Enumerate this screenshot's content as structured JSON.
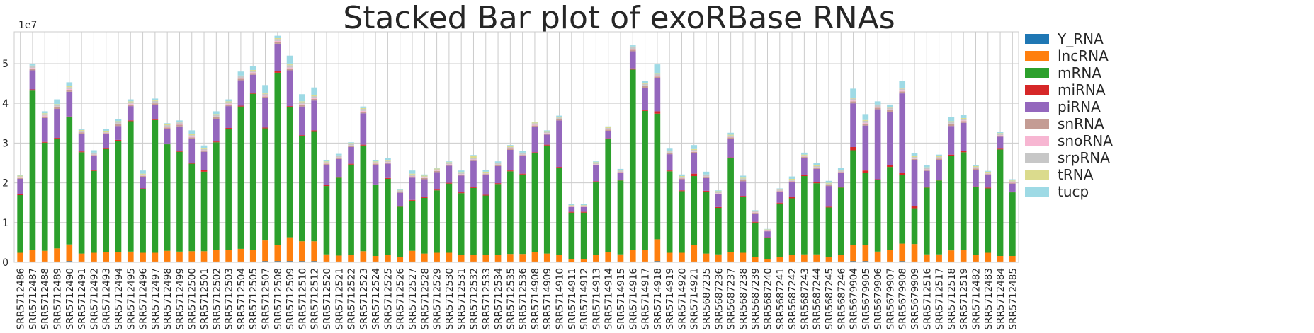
{
  "chart_data": {
    "type": "bar",
    "stacked": true,
    "title": "Stacked Bar plot of exoRBase RNAs",
    "xlabel": "",
    "ylabel": "",
    "y_scale_label": "1e7",
    "y_scale": 10000000,
    "ylim": [
      0,
      5.8
    ],
    "yticks": [
      0,
      1,
      2,
      3,
      4,
      5
    ],
    "grid": true,
    "legend_position": "right",
    "categories": [
      "SRR5712486",
      "SRR5712487",
      "SRR5712488",
      "SRR5712489",
      "SRR5712490",
      "SRR5712491",
      "SRR5712492",
      "SRR5712493",
      "SRR5712494",
      "SRR5712495",
      "SRR5712496",
      "SRR5712497",
      "SRR5712498",
      "SRR5712499",
      "SRR5712500",
      "SRR5712501",
      "SRR5712502",
      "SRR5712503",
      "SRR5712504",
      "SRR5712505",
      "SRR5712507",
      "SRR5712508",
      "SRR5712509",
      "SRR5712510",
      "SRR5712512",
      "SRR5712520",
      "SRR5712521",
      "SRR5712522",
      "SRR5712523",
      "SRR5712524",
      "SRR5712525",
      "SRR5712526",
      "SRR5712527",
      "SRR5712528",
      "SRR5712529",
      "SRR5712530",
      "SRR5712531",
      "SRR5712532",
      "SRR5712533",
      "SRR5712534",
      "SRR5712535",
      "SRR5712536",
      "SRR5714908",
      "SRR5714909",
      "SRR5714910",
      "SRR5714911",
      "SRR5714912",
      "SRR5714913",
      "SRR5714914",
      "SRR5714915",
      "SRR5714916",
      "SRR5714917",
      "SRR5714918",
      "SRR5714919",
      "SRR5714920",
      "SRR5714921",
      "SRR5687235",
      "SRR5687236",
      "SRR5687237",
      "SRR5687238",
      "SRR5687239",
      "SRR5687240",
      "SRR5687241",
      "SRR5687242",
      "SRR5687243",
      "SRR5687244",
      "SRR5687245",
      "SRR5687246",
      "SRR5679904",
      "SRR5679905",
      "SRR5679906",
      "SRR5679907",
      "SRR5679908",
      "SRR5679909",
      "SRR5712516",
      "SRR5712517",
      "SRR5712518",
      "SRR5712519",
      "SRR5712482",
      "SRR5712483",
      "SRR5712484",
      "SRR5712485"
    ],
    "series": [
      {
        "name": "Y_RNA",
        "color": "#1f77b4",
        "values": [
          0.02,
          0.02,
          0.02,
          0.02,
          0.03,
          0.02,
          0.02,
          0.02,
          0.02,
          0.02,
          0.02,
          0.02,
          0.02,
          0.02,
          0.02,
          0.02,
          0.02,
          0.02,
          0.02,
          0.02,
          0.03,
          0.03,
          0.03,
          0.03,
          0.03,
          0.02,
          0.02,
          0.02,
          0.02,
          0.02,
          0.02,
          0.01,
          0.02,
          0.02,
          0.02,
          0.02,
          0.02,
          0.02,
          0.02,
          0.02,
          0.02,
          0.02,
          0.02,
          0.02,
          0.02,
          0.01,
          0.01,
          0.02,
          0.02,
          0.02,
          0.02,
          0.02,
          0.03,
          0.02,
          0.02,
          0.02,
          0.02,
          0.02,
          0.02,
          0.02,
          0.01,
          0.01,
          0.02,
          0.02,
          0.02,
          0.02,
          0.02,
          0.02,
          0.03,
          0.03,
          0.02,
          0.02,
          0.03,
          0.02,
          0.02,
          0.02,
          0.02,
          0.02,
          0.02,
          0.02,
          0.02,
          0.02
        ]
      },
      {
        "name": "lncRNA",
        "color": "#ff7f0e",
        "values": [
          0.22,
          0.29,
          0.27,
          0.33,
          0.42,
          0.2,
          0.22,
          0.23,
          0.24,
          0.25,
          0.22,
          0.22,
          0.27,
          0.25,
          0.26,
          0.26,
          0.3,
          0.3,
          0.32,
          0.3,
          0.52,
          0.4,
          0.6,
          0.5,
          0.5,
          0.18,
          0.15,
          0.17,
          0.26,
          0.14,
          0.16,
          0.12,
          0.27,
          0.2,
          0.22,
          0.22,
          0.16,
          0.16,
          0.16,
          0.17,
          0.19,
          0.19,
          0.23,
          0.2,
          0.16,
          0.07,
          0.07,
          0.17,
          0.23,
          0.18,
          0.3,
          0.3,
          0.55,
          0.22,
          0.22,
          0.42,
          0.2,
          0.18,
          0.23,
          0.22,
          0.12,
          0.07,
          0.12,
          0.16,
          0.18,
          0.18,
          0.12,
          0.16,
          0.4,
          0.4,
          0.25,
          0.3,
          0.44,
          0.44,
          0.18,
          0.18,
          0.28,
          0.3,
          0.17,
          0.22,
          0.14,
          0.14
        ]
      },
      {
        "name": "mRNA",
        "color": "#2ca02c",
        "values": [
          1.45,
          4.01,
          2.72,
          2.76,
          3.2,
          2.55,
          2.06,
          2.6,
          2.8,
          3.28,
          1.6,
          3.34,
          2.68,
          2.51,
          2.2,
          2.0,
          2.7,
          3.04,
          3.58,
          3.92,
          2.82,
          4.34,
          3.28,
          2.65,
          2.77,
          1.72,
          1.96,
          2.27,
          2.66,
          1.78,
          1.92,
          1.27,
          1.26,
          1.4,
          1.57,
          1.74,
          1.56,
          1.69,
          1.5,
          1.78,
          2.08,
          2.0,
          2.5,
          2.72,
          2.2,
          1.17,
          1.17,
          1.83,
          2.85,
          1.86,
          4.53,
          3.49,
          3.16,
          2.05,
          1.55,
          1.73,
          1.56,
          1.17,
          2.37,
          1.41,
          0.87,
          0.53,
          1.34,
          1.43,
          1.97,
          1.79,
          1.24,
          1.7,
          2.39,
          1.82,
          1.8,
          2.08,
          1.73,
          0.9,
          1.68,
          1.86,
          2.37,
          2.45,
          1.7,
          1.62,
          2.68,
          1.6
        ]
      },
      {
        "name": "miRNA",
        "color": "#d62728",
        "values": [
          0.03,
          0.03,
          0.02,
          0.02,
          0.02,
          0.02,
          0.02,
          0.02,
          0.02,
          0.02,
          0.02,
          0.02,
          0.02,
          0.02,
          0.02,
          0.05,
          0.02,
          0.02,
          0.02,
          0.02,
          0.02,
          0.05,
          0.02,
          0.02,
          0.02,
          0.02,
          0.02,
          0.02,
          0.02,
          0.02,
          0.02,
          0.02,
          0.02,
          0.02,
          0.02,
          0.02,
          0.02,
          0.02,
          0.02,
          0.02,
          0.02,
          0.02,
          0.02,
          0.02,
          0.02,
          0.02,
          0.02,
          0.02,
          0.02,
          0.02,
          0.03,
          0.02,
          0.06,
          0.02,
          0.02,
          0.06,
          0.02,
          0.02,
          0.02,
          0.02,
          0.02,
          0.02,
          0.02,
          0.04,
          0.02,
          0.02,
          0.02,
          0.02,
          0.08,
          0.06,
          0.02,
          0.04,
          0.05,
          0.06,
          0.02,
          0.02,
          0.04,
          0.04,
          0.02,
          0.02,
          0.02,
          0.02
        ]
      },
      {
        "name": "piRNA",
        "color": "#9467bd",
        "values": [
          0.38,
          0.48,
          0.6,
          0.73,
          0.62,
          0.45,
          0.35,
          0.35,
          0.35,
          0.36,
          0.28,
          0.36,
          0.36,
          0.62,
          0.6,
          0.45,
          0.57,
          0.55,
          0.64,
          0.46,
          0.74,
          0.68,
          0.9,
          0.72,
          0.75,
          0.51,
          0.45,
          0.42,
          0.79,
          0.49,
          0.36,
          0.33,
          0.56,
          0.45,
          0.44,
          0.43,
          0.42,
          0.66,
          0.49,
          0.43,
          0.52,
          0.44,
          0.63,
          0.25,
          1.17,
          0.12,
          0.12,
          0.4,
          0.19,
          0.17,
          0.43,
          0.56,
          0.83,
          0.41,
          0.28,
          0.52,
          0.32,
          0.32,
          0.47,
          0.37,
          0.21,
          0.15,
          0.27,
          0.37,
          0.43,
          0.34,
          0.52,
          0.35,
          1.1,
          1.13,
          1.76,
          1.35,
          2.0,
          1.15,
          0.4,
          0.5,
          0.72,
          0.7,
          0.42,
          0.32,
          0.3,
          0.2
        ]
      },
      {
        "name": "snRNA",
        "color": "#c49c94",
        "values": [
          0.02,
          0.04,
          0.04,
          0.04,
          0.05,
          0.03,
          0.03,
          0.03,
          0.04,
          0.04,
          0.03,
          0.04,
          0.04,
          0.04,
          0.04,
          0.03,
          0.04,
          0.04,
          0.04,
          0.04,
          0.04,
          0.05,
          0.05,
          0.04,
          0.04,
          0.03,
          0.03,
          0.03,
          0.04,
          0.03,
          0.03,
          0.02,
          0.03,
          0.03,
          0.03,
          0.03,
          0.03,
          0.03,
          0.03,
          0.03,
          0.03,
          0.03,
          0.04,
          0.03,
          0.03,
          0.01,
          0.01,
          0.02,
          0.03,
          0.02,
          0.04,
          0.04,
          0.04,
          0.03,
          0.02,
          0.03,
          0.03,
          0.02,
          0.03,
          0.03,
          0.02,
          0.01,
          0.02,
          0.02,
          0.03,
          0.03,
          0.02,
          0.02,
          0.05,
          0.05,
          0.04,
          0.04,
          0.05,
          0.03,
          0.03,
          0.03,
          0.04,
          0.04,
          0.03,
          0.02,
          0.03,
          0.02
        ]
      },
      {
        "name": "snoRNA",
        "color": "#f7b6d2",
        "values": [
          0.01,
          0.02,
          0.02,
          0.02,
          0.02,
          0.01,
          0.01,
          0.01,
          0.02,
          0.02,
          0.01,
          0.02,
          0.02,
          0.02,
          0.02,
          0.01,
          0.02,
          0.02,
          0.02,
          0.02,
          0.02,
          0.02,
          0.02,
          0.02,
          0.02,
          0.01,
          0.01,
          0.01,
          0.02,
          0.01,
          0.01,
          0.01,
          0.01,
          0.01,
          0.01,
          0.01,
          0.01,
          0.01,
          0.01,
          0.01,
          0.01,
          0.01,
          0.02,
          0.01,
          0.01,
          0.01,
          0.01,
          0.01,
          0.01,
          0.01,
          0.02,
          0.02,
          0.02,
          0.01,
          0.01,
          0.01,
          0.01,
          0.01,
          0.01,
          0.01,
          0.01,
          0.01,
          0.01,
          0.01,
          0.01,
          0.01,
          0.01,
          0.01,
          0.02,
          0.02,
          0.02,
          0.02,
          0.02,
          0.01,
          0.01,
          0.01,
          0.02,
          0.02,
          0.01,
          0.01,
          0.01,
          0.01
        ]
      },
      {
        "name": "srpRNA",
        "color": "#c7c7c7",
        "values": [
          0.03,
          0.04,
          0.04,
          0.04,
          0.05,
          0.03,
          0.03,
          0.03,
          0.04,
          0.04,
          0.03,
          0.04,
          0.04,
          0.04,
          0.04,
          0.03,
          0.04,
          0.04,
          0.04,
          0.04,
          0.05,
          0.05,
          0.06,
          0.05,
          0.05,
          0.03,
          0.03,
          0.04,
          0.05,
          0.03,
          0.03,
          0.03,
          0.04,
          0.03,
          0.03,
          0.03,
          0.03,
          0.04,
          0.03,
          0.03,
          0.03,
          0.03,
          0.04,
          0.03,
          0.03,
          0.02,
          0.02,
          0.03,
          0.03,
          0.03,
          0.04,
          0.04,
          0.05,
          0.03,
          0.03,
          0.04,
          0.03,
          0.03,
          0.04,
          0.03,
          0.02,
          0.02,
          0.03,
          0.03,
          0.03,
          0.03,
          0.03,
          0.03,
          0.05,
          0.05,
          0.04,
          0.04,
          0.05,
          0.04,
          0.03,
          0.03,
          0.04,
          0.04,
          0.03,
          0.03,
          0.03,
          0.03
        ]
      },
      {
        "name": "tRNA",
        "color": "#dbdb8d",
        "values": [
          0.02,
          0.02,
          0.02,
          0.02,
          0.02,
          0.02,
          0.02,
          0.02,
          0.02,
          0.02,
          0.02,
          0.02,
          0.02,
          0.02,
          0.02,
          0.02,
          0.02,
          0.02,
          0.02,
          0.02,
          0.02,
          0.02,
          0.02,
          0.02,
          0.02,
          0.02,
          0.02,
          0.02,
          0.02,
          0.02,
          0.02,
          0.01,
          0.02,
          0.02,
          0.02,
          0.02,
          0.02,
          0.05,
          0.02,
          0.02,
          0.02,
          0.02,
          0.02,
          0.02,
          0.02,
          0.01,
          0.01,
          0.02,
          0.02,
          0.02,
          0.02,
          0.02,
          0.02,
          0.02,
          0.02,
          0.02,
          0.02,
          0.02,
          0.02,
          0.02,
          0.01,
          0.01,
          0.02,
          0.02,
          0.02,
          0.02,
          0.02,
          0.02,
          0.02,
          0.02,
          0.02,
          0.02,
          0.02,
          0.02,
          0.02,
          0.02,
          0.02,
          0.02,
          0.02,
          0.02,
          0.02,
          0.02
        ]
      },
      {
        "name": "tucp",
        "color": "#9edae5",
        "values": [
          0.02,
          0.05,
          0.05,
          0.12,
          0.1,
          0.02,
          0.06,
          0.04,
          0.05,
          0.05,
          0.08,
          0.04,
          0.03,
          0.03,
          0.1,
          0.07,
          0.07,
          0.05,
          0.1,
          0.1,
          0.2,
          0.06,
          0.22,
          0.18,
          0.2,
          0.04,
          0.04,
          0.02,
          0.04,
          0.03,
          0.05,
          0.03,
          0.08,
          0.03,
          0.02,
          0.02,
          0.04,
          0.02,
          0.04,
          0.03,
          0.03,
          0.04,
          0.02,
          0.02,
          0.03,
          0.02,
          0.02,
          0.02,
          0.02,
          0.02,
          0.03,
          0.05,
          0.22,
          0.05,
          0.04,
          0.1,
          0.07,
          0.02,
          0.05,
          0.05,
          0.02,
          0.01,
          0.01,
          0.06,
          0.05,
          0.05,
          0.05,
          0.04,
          0.23,
          0.15,
          0.08,
          0.06,
          0.18,
          0.07,
          0.06,
          0.04,
          0.1,
          0.08,
          0.02,
          0.02,
          0.03,
          0.03
        ]
      }
    ]
  }
}
